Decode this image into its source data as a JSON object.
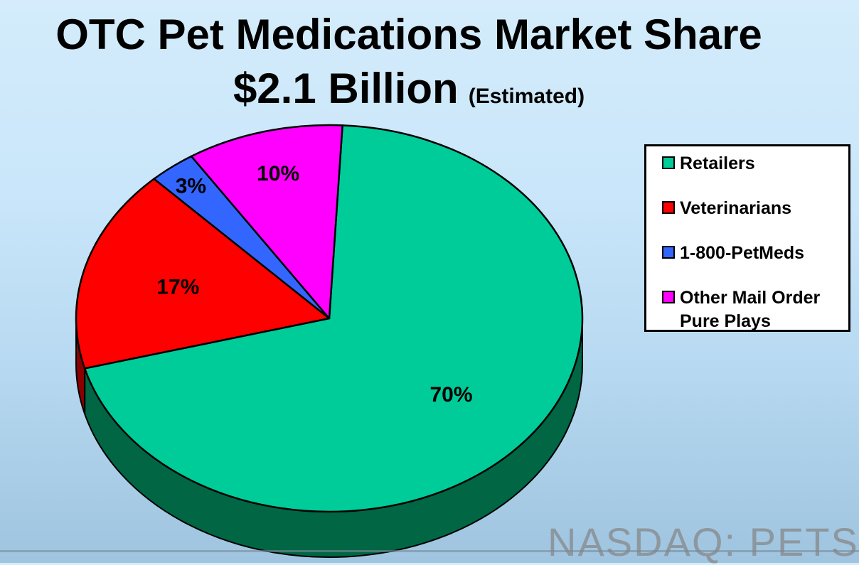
{
  "title": {
    "line1": "OTC Pet Medications Market Share",
    "line2": "$2.1 Billion",
    "line2_suffix": "(Estimated)"
  },
  "watermark": "NASDAQ: PETS",
  "chart_data": {
    "type": "pie",
    "title": "OTC Pet Medications Market Share $2.1 Billion (Estimated)",
    "unit": "%",
    "legend_position": "right",
    "three_d": true,
    "slices": [
      {
        "name": "Retailers",
        "value": 70,
        "label": "70%",
        "color": "#00cc99",
        "side_color": "#006644"
      },
      {
        "name": "Veterinarians",
        "value": 17,
        "label": "17%",
        "color": "#ff0000",
        "side_color": "#8a0000"
      },
      {
        "name": "1-800-PetMeds",
        "value": 3,
        "label": "3%",
        "color": "#3366ff",
        "side_color": "#1a3380"
      },
      {
        "name": "Other Mail Order Pure Plays",
        "value": 10,
        "label": "10%",
        "color": "#ff00ff",
        "side_color": "#7a007a"
      }
    ]
  },
  "legend": {
    "items": [
      {
        "lines": [
          "Retailers"
        ]
      },
      {
        "lines": [
          "Veterinarians"
        ]
      },
      {
        "lines": [
          "1-800-PetMeds"
        ]
      },
      {
        "lines": [
          "Other Mail Order",
          "Pure Plays"
        ]
      }
    ]
  }
}
